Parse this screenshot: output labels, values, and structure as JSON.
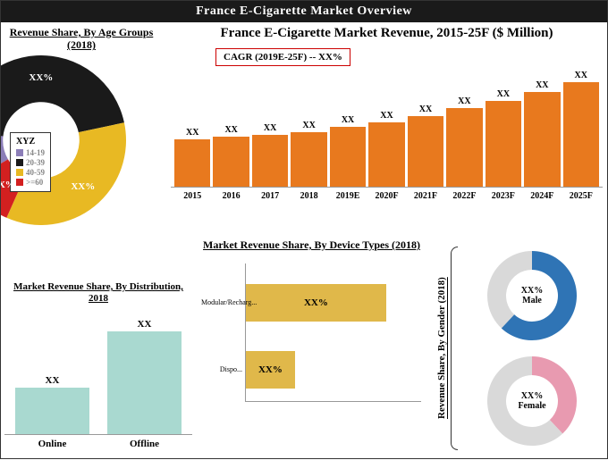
{
  "header": {
    "title": "France E-Cigarette Market Overview"
  },
  "age": {
    "title": "Revenue Share, By Age Groups (2018)",
    "legend_title": "XYZ",
    "groups": [
      {
        "name": "14-19",
        "color": "#8c7eb8",
        "pct": 10,
        "label": "XX%"
      },
      {
        "name": "20-39",
        "color": "#1a1a1a",
        "pct": 45,
        "label": "XX%"
      },
      {
        "name": "40-59",
        "color": "#e8b923",
        "pct": 35,
        "label": "XX%"
      },
      {
        "name": ">=60",
        "color": "#d32020",
        "pct": 10,
        "label": "XX%"
      }
    ],
    "inner_ratio": 0.45
  },
  "revenue": {
    "title": "France E-Cigarette Market Revenue, 2015-25F ($ Million)",
    "cagr_label": "CAGR (2019E-25F) -- XX%",
    "bar_color": "#e8791e",
    "ylim": [
      0,
      130
    ],
    "bars": [
      {
        "year": "2015",
        "value": 55,
        "label": "XX"
      },
      {
        "year": "2016",
        "value": 58,
        "label": "XX"
      },
      {
        "year": "2017",
        "value": 60,
        "label": "XX"
      },
      {
        "year": "2018",
        "value": 63,
        "label": "XX"
      },
      {
        "year": "2019E",
        "value": 70,
        "label": "XX"
      },
      {
        "year": "2020F",
        "value": 75,
        "label": "XX"
      },
      {
        "year": "2021F",
        "value": 82,
        "label": "XX"
      },
      {
        "year": "2022F",
        "value": 92,
        "label": "XX"
      },
      {
        "year": "2023F",
        "value": 100,
        "label": "XX"
      },
      {
        "year": "2024F",
        "value": 110,
        "label": "XX"
      },
      {
        "year": "2025F",
        "value": 122,
        "label": "XX"
      }
    ]
  },
  "distribution": {
    "title": "Market Revenue Share, By Distribution, 2018",
    "bar_color": "#a9d9d0",
    "ylim": [
      0,
      130
    ],
    "bars": [
      {
        "name": "Online",
        "value": 55,
        "label": "XX"
      },
      {
        "name": "Offline",
        "value": 120,
        "label": "XX"
      }
    ]
  },
  "device": {
    "title": "Market Revenue Share, By Device Types (2018)",
    "bar_color": "#e0b84a",
    "xlim": [
      0,
      100
    ],
    "rows": [
      {
        "name": "Modular/Recharg...",
        "value": 80,
        "label": "XX%"
      },
      {
        "name": "Dispo...",
        "value": 28,
        "label": "XX%"
      }
    ]
  },
  "gender": {
    "title": "Revenue Share, By Gender (2018)",
    "ring_bg": "#d9d9d9",
    "inner_ratio": 0.58,
    "male": {
      "pct": 62,
      "color": "#2f74b5",
      "label_pct": "XX%",
      "label_name": "Male"
    },
    "female": {
      "pct": 38,
      "color": "#e89ab0",
      "label_pct": "XX%",
      "label_name": "Female"
    }
  }
}
